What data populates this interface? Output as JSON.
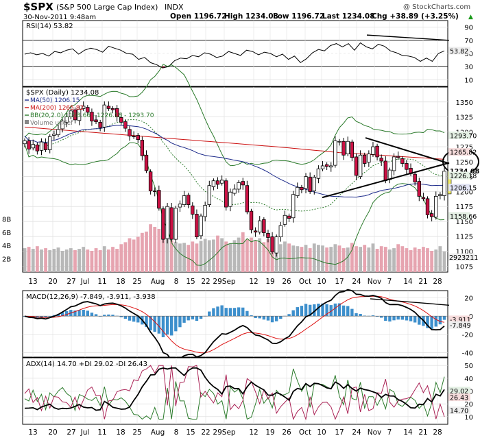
{
  "header": {
    "symbol": "$SPX",
    "name": "(S&P 500 Large Cap Index)",
    "exchange": "INDX",
    "datetime": "30-Nov-2011 9:48am",
    "open": "Open 1196.72",
    "high": "High 1234.08",
    "low": "Low 1196.72",
    "last": "Last 1234.08",
    "change": "Chg +38.89 (+3.25%)",
    "arrow": "▲",
    "watermark": "@ StockCharts.com"
  },
  "x_labels": [
    "13",
    "20",
    "27",
    "Jul",
    "11",
    "18",
    "25",
    "Aug",
    "8",
    "15",
    "22",
    "29Sep",
    "12",
    "19",
    "26",
    "Oct",
    "10",
    "17",
    "24",
    "Nov",
    "7",
    "14",
    "21",
    "28"
  ],
  "rsi": {
    "label": "RSI(14) 53.82",
    "y_ticks": [
      "90",
      "70",
      "50",
      "30",
      "10"
    ],
    "value_label": "53.82",
    "value": 53.82,
    "ylim": [
      0,
      100
    ],
    "series": [
      49,
      51,
      48,
      50,
      46,
      53,
      51,
      55,
      57,
      49,
      55,
      58,
      56,
      52,
      61,
      58,
      55,
      50,
      49,
      41,
      44,
      36,
      33,
      28,
      30,
      39,
      43,
      42,
      47,
      45,
      51,
      49,
      44,
      46,
      53,
      50,
      47,
      55,
      53,
      48,
      52,
      50,
      45,
      49,
      41,
      46,
      36,
      42,
      51,
      56,
      54,
      62,
      65,
      60,
      65,
      55,
      66,
      60,
      57,
      64,
      61,
      54,
      51,
      47,
      46,
      44,
      38,
      43,
      38,
      50,
      54
    ]
  },
  "price": {
    "title": "$SPX (Daily) 1234.08",
    "legend": [
      {
        "label": "MA(50) 1206.15",
        "color": "#1c2a8a"
      },
      {
        "label": "MA(200) 1265.82",
        "color": "#cc1111"
      },
      {
        "label": "BB(20,2.0) 1158.66 - 1226.18 - 1293.70",
        "color": "#2a7a2a"
      },
      {
        "label": "Volume undef",
        "color": "#777777"
      }
    ],
    "y_ticks": [
      "1350",
      "1325",
      "1300",
      "1275",
      "1250",
      "1225",
      "1200",
      "1175",
      "1150",
      "1125",
      "1100",
      "1075"
    ],
    "ylim": [
      1065,
      1375
    ],
    "right_labels": [
      {
        "text": "1293.70",
        "value": 1293.7,
        "bg": "#e4f0e4"
      },
      {
        "text": "1265.82",
        "value": 1265.82,
        "bg": "#f6dcdc"
      },
      {
        "text": "1234.08",
        "value": 1234.08,
        "bg": "#ffffff"
      },
      {
        "text": "1226.18",
        "value": 1226.18,
        "bg": "#e4f0e4"
      },
      {
        "text": "1206.15",
        "value": 1206.15,
        "bg": "#e2e4f4"
      },
      {
        "text": "1158.66",
        "value": 1158.66,
        "bg": "#e4f0e4"
      }
    ],
    "volume_ticks": [
      "8B",
      "6B",
      "4B",
      "2B"
    ],
    "volume_label": "2923211",
    "volume_ylim": [
      0,
      10
    ]
  },
  "macd": {
    "label": "MACD(12,26,9) -7.849, -3.911, -3.938",
    "y_ticks": [
      "20",
      "0",
      "-20",
      "-40"
    ],
    "ylim": [
      -45,
      28
    ],
    "value_labels": [
      "-3.911",
      "-7.849"
    ]
  },
  "adx": {
    "label": "ADX(14) 14.70 +DI 29.02 -DI 26.43",
    "y_ticks": [
      "50",
      "40",
      "30",
      "20",
      "10"
    ],
    "ylim": [
      4,
      56
    ],
    "value_labels": [
      "29.02",
      "26.43",
      "14.70"
    ]
  },
  "chart_data": {
    "type": "candlestick",
    "title": "$SPX (Daily) 1234.08",
    "xlabel": "",
    "ylabel": "",
    "ylim": [
      1065,
      1375
    ],
    "close": [
      1285,
      1271,
      1279,
      1268,
      1283,
      1270,
      1292,
      1296,
      1304,
      1318,
      1325,
      1335,
      1320,
      1338,
      1343,
      1333,
      1318,
      1317,
      1307,
      1345,
      1339,
      1337,
      1325,
      1316,
      1306,
      1293,
      1292,
      1287,
      1260,
      1235,
      1201,
      1200,
      1172,
      1120,
      1175,
      1120,
      1172,
      1179,
      1193,
      1178,
      1162,
      1124,
      1159,
      1177,
      1210,
      1218,
      1212,
      1219,
      1174,
      1199,
      1204,
      1215,
      1211,
      1166,
      1136,
      1132,
      1151,
      1131,
      1123,
      1099,
      1124,
      1143,
      1160,
      1155,
      1195,
      1207,
      1203,
      1225,
      1200,
      1224,
      1238,
      1243,
      1242,
      1243,
      1285,
      1284,
      1261,
      1284,
      1257,
      1227,
      1261,
      1247,
      1263,
      1275,
      1258,
      1251,
      1218,
      1236,
      1258,
      1257,
      1247,
      1237,
      1230,
      1216,
      1192,
      1188,
      1161,
      1158,
      1192,
      1195,
      1234
    ],
    "volume_billion": [
      3.6,
      3.8,
      3.5,
      3.9,
      3.4,
      3.6,
      3.3,
      3.5,
      3.7,
      3.2,
      3.4,
      3.6,
      3.3,
      3.5,
      3.8,
      3.4,
      3.2,
      3.6,
      3.3,
      3.9,
      3.4,
      3.8,
      3.5,
      4.2,
      4.5,
      5.1,
      4.9,
      5.3,
      5.9,
      6.1,
      7.2,
      6.8,
      6.5,
      5.7,
      5.2,
      4.8,
      4.5,
      4.3,
      4.4,
      4.1,
      4.6,
      4.3,
      4.7,
      5.0,
      4.8,
      4.9,
      5.5,
      5.1,
      4.6,
      4.3,
      4.8,
      5.2,
      6.0,
      4.9,
      5.2,
      4.7,
      5.1,
      4.5,
      5.0,
      5.4,
      4.8,
      4.2,
      4.6,
      4.3,
      4.0,
      3.9,
      3.8,
      4.1,
      3.6,
      4.3,
      4.1,
      4.0,
      3.7,
      3.8,
      4.2,
      4.0,
      3.6,
      3.7,
      4.4,
      3.9,
      3.8,
      4.1,
      3.7,
      4.3,
      3.5,
      3.9,
      3.8,
      3.4,
      3.6,
      4.2,
      3.9,
      3.6,
      3.3,
      3.7,
      3.5,
      3.8,
      3.6,
      3.2,
      3.4,
      3.9,
      3.1
    ]
  }
}
